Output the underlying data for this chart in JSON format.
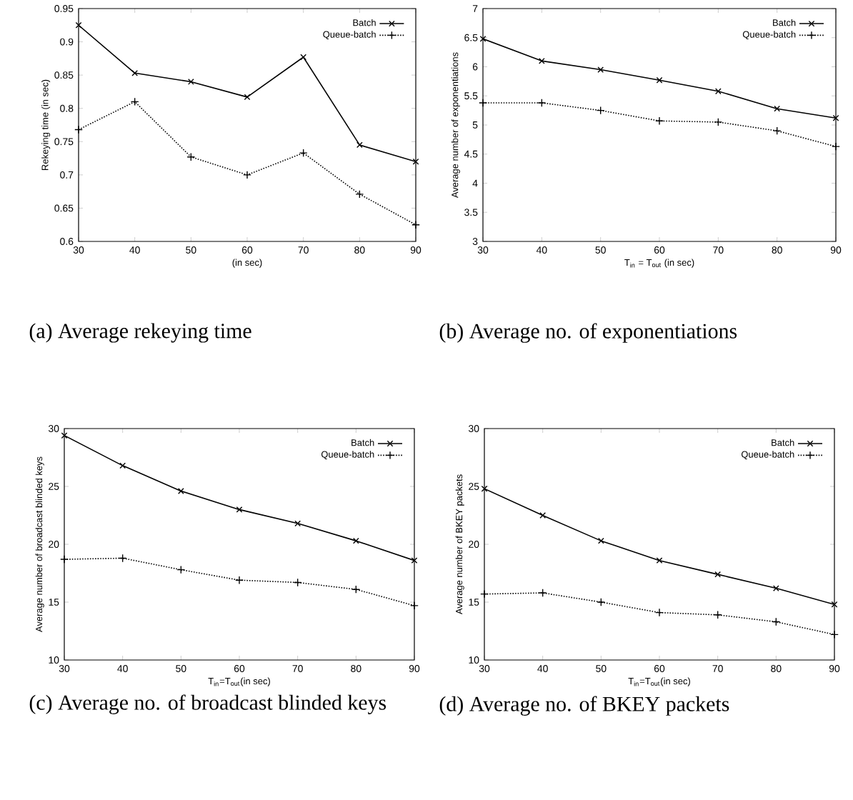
{
  "chart_data": [
    {
      "type": "line",
      "title": "(a) Average rekeying time",
      "xlabel": "(in sec)",
      "ylabel": "Rekeying time (in sec)",
      "x": [
        30,
        40,
        50,
        60,
        70,
        80,
        90
      ],
      "xlim": [
        30,
        90
      ],
      "xticks": [
        30,
        40,
        50,
        60,
        70,
        80,
        90
      ],
      "ylim": [
        0.6,
        0.95
      ],
      "yticks": [
        0.6,
        0.65,
        0.7,
        0.75,
        0.8,
        0.85,
        0.9,
        0.95
      ],
      "legend": "top right",
      "grid": false,
      "series": [
        {
          "name": "Batch",
          "color": "#000000",
          "marker": "cross",
          "line_style": "solid",
          "values": [
            0.925,
            0.853,
            0.84,
            0.817,
            0.877,
            0.745,
            0.72
          ]
        },
        {
          "name": "Queue-batch",
          "color": "#000000",
          "marker": "cross",
          "line_style": "dotted",
          "values": [
            0.768,
            0.81,
            0.727,
            0.7,
            0.733,
            0.671,
            0.625
          ]
        }
      ]
    },
    {
      "type": "line",
      "title": "(b) Average no. of exponentiations",
      "xlabel": "T$_{in}$ = T$_{out}$ (in sec)",
      "ylabel": "Average number of exponentiations",
      "x": [
        30,
        40,
        50,
        60,
        70,
        80,
        90
      ],
      "xlim": [
        30,
        90
      ],
      "xticks": [
        30,
        40,
        50,
        60,
        70,
        80,
        90
      ],
      "ylim": [
        3,
        7
      ],
      "yticks": [
        3,
        3.5,
        4,
        4.5,
        5,
        5.5,
        6,
        6.5,
        7
      ],
      "legend": "top right",
      "grid": false,
      "series": [
        {
          "name": "Batch",
          "color": "#000000",
          "marker": "cross",
          "line_style": "solid",
          "values": [
            6.48,
            6.1,
            5.95,
            5.77,
            5.58,
            5.28,
            5.12
          ]
        },
        {
          "name": "Queue-batch",
          "color": "#000000",
          "marker": "cross",
          "line_style": "dotted",
          "values": [
            5.38,
            5.38,
            5.25,
            5.07,
            5.05,
            4.9,
            4.63
          ]
        }
      ]
    },
    {
      "type": "line",
      "title": "(c) Average no. of broadcast blinded keys",
      "xlabel": "T$_{in}$=T$_{out}$(in sec)",
      "ylabel": "Average number of broadcast blinded keys",
      "x": [
        30,
        40,
        50,
        60,
        70,
        80,
        90
      ],
      "xlim": [
        30,
        90
      ],
      "xticks": [
        30,
        40,
        50,
        60,
        70,
        80,
        90
      ],
      "ylim": [
        10,
        30
      ],
      "yticks": [
        10,
        15,
        20,
        25,
        30
      ],
      "legend": "top right",
      "grid": false,
      "series": [
        {
          "name": "Batch",
          "color": "#000000",
          "marker": "cross",
          "line_style": "solid",
          "values": [
            29.4,
            26.8,
            24.6,
            23.0,
            21.8,
            20.3,
            18.6
          ]
        },
        {
          "name": "Queue-batch",
          "color": "#000000",
          "marker": "cross",
          "line_style": "dotted",
          "values": [
            18.7,
            18.8,
            17.8,
            16.9,
            16.7,
            16.1,
            14.7
          ]
        }
      ]
    },
    {
      "type": "line",
      "title": "(d) Average no. of BKEY packets",
      "xlabel": "T$_{in}$=T$_{out}$(in sec)",
      "ylabel": "Average number of BKEY packets",
      "x": [
        30,
        40,
        50,
        60,
        70,
        80,
        90
      ],
      "xlim": [
        30,
        90
      ],
      "xticks": [
        30,
        40,
        50,
        60,
        70,
        80,
        90
      ],
      "ylim": [
        10,
        30
      ],
      "yticks": [
        10,
        15,
        20,
        25,
        30
      ],
      "legend": "top right",
      "grid": false,
      "series": [
        {
          "name": "Batch",
          "color": "#000000",
          "marker": "cross",
          "line_style": "solid",
          "values": [
            24.8,
            22.5,
            20.3,
            18.6,
            17.4,
            16.2,
            14.8
          ]
        },
        {
          "name": "Queue-batch",
          "color": "#000000",
          "marker": "cross",
          "line_style": "dotted",
          "values": [
            15.7,
            15.8,
            15.0,
            14.1,
            13.9,
            13.3,
            12.2
          ]
        }
      ]
    }
  ]
}
